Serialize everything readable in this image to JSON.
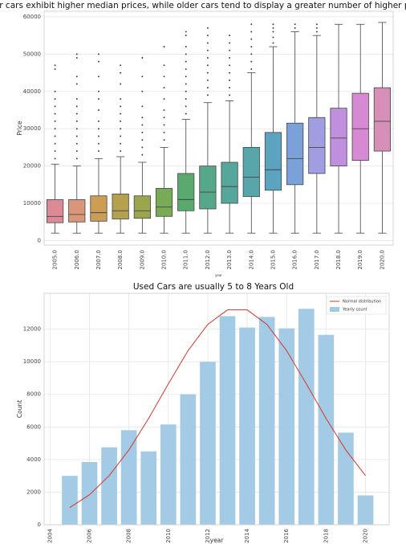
{
  "chart_data": [
    {
      "type": "box",
      "title": "Newer cars exhibit higher median prices, while older cars tend to display a greater number of higher price outlier",
      "x_label": "year",
      "y_label": "Price",
      "categories": [
        "2005.0",
        "2006.0",
        "2007.0",
        "2008.0",
        "2009.0",
        "2010.0",
        "2011.0",
        "2012.0",
        "2013.0",
        "2014.0",
        "2015.0",
        "2016.0",
        "2017.0",
        "2018.0",
        "2019.0",
        "2020.0"
      ],
      "colors": [
        "#dc8b96",
        "#d9967a",
        "#cc9e55",
        "#b4a04e",
        "#9aa54e",
        "#78ab56",
        "#5aaa70",
        "#55a98a",
        "#56a69c",
        "#58a5aa",
        "#5ca3bf",
        "#7ba2d8",
        "#a09ee0",
        "#c090de",
        "#d889d3",
        "#d690b8"
      ],
      "boxes": [
        {
          "whislo": 2000,
          "q1": 4800,
          "med": 6500,
          "q3": 11000,
          "whishi": 20500,
          "fliers": [
            22000,
            24000,
            26000,
            28000,
            30000,
            32000,
            34000,
            36000,
            38000,
            40000,
            46000,
            47000
          ]
        },
        {
          "whislo": 2000,
          "q1": 5000,
          "med": 7000,
          "q3": 11000,
          "whishi": 20000,
          "fliers": [
            22000,
            24000,
            26000,
            28000,
            30000,
            32000,
            34000,
            36000,
            38000,
            42000,
            44000,
            49000,
            50000
          ]
        },
        {
          "whislo": 2000,
          "q1": 5200,
          "med": 7500,
          "q3": 12000,
          "whishi": 22000,
          "fliers": [
            24000,
            26000,
            28000,
            30000,
            32000,
            35000,
            38000,
            40000,
            44000,
            48000,
            50000
          ]
        },
        {
          "whislo": 2000,
          "q1": 5800,
          "med": 8000,
          "q3": 12500,
          "whishi": 22500,
          "fliers": [
            24000,
            26000,
            28000,
            30000,
            32000,
            34000,
            36000,
            38000,
            42000,
            45000,
            47000
          ]
        },
        {
          "whislo": 2000,
          "q1": 6000,
          "med": 8000,
          "q3": 12000,
          "whishi": 21000,
          "fliers": [
            23000,
            25000,
            27000,
            29000,
            31000,
            33000,
            36000,
            40000,
            44000,
            49000
          ]
        },
        {
          "whislo": 2000,
          "q1": 6500,
          "med": 9000,
          "q3": 14000,
          "whishi": 25000,
          "fliers": [
            27000,
            29000,
            31000,
            33000,
            35000,
            38000,
            41000,
            44000,
            47000,
            52000
          ]
        },
        {
          "whislo": 2000,
          "q1": 8000,
          "med": 11000,
          "q3": 18000,
          "whishi": 32500,
          "fliers": [
            34000,
            36000,
            38000,
            40000,
            42000,
            44000,
            46000,
            48000,
            50000,
            52000,
            55000,
            56000
          ]
        },
        {
          "whislo": 2000,
          "q1": 8500,
          "med": 13000,
          "q3": 20000,
          "whishi": 37000,
          "fliers": [
            39000,
            41000,
            43000,
            45000,
            47000,
            49000,
            51000,
            53000,
            55000,
            57000
          ]
        },
        {
          "whislo": 2000,
          "q1": 10000,
          "med": 14500,
          "q3": 21000,
          "whishi": 37500,
          "fliers": [
            39000,
            41000,
            43000,
            45000,
            47000,
            49000,
            51000,
            53000,
            55000
          ]
        },
        {
          "whislo": 2000,
          "q1": 11800,
          "med": 17000,
          "q3": 25000,
          "whishi": 45000,
          "fliers": [
            46000,
            48000,
            50000,
            52000,
            54000,
            56000,
            58000
          ]
        },
        {
          "whislo": 2000,
          "q1": 13500,
          "med": 19000,
          "q3": 29000,
          "whishi": 52000,
          "fliers": [
            53000,
            54500,
            56000,
            57000,
            58000
          ]
        },
        {
          "whislo": 2000,
          "q1": 15000,
          "med": 22000,
          "q3": 31500,
          "whishi": 56000,
          "fliers": [
            57000,
            58000
          ]
        },
        {
          "whislo": 2000,
          "q1": 18000,
          "med": 25000,
          "q3": 33000,
          "whishi": 55000,
          "fliers": [
            56000,
            57000,
            58000
          ]
        },
        {
          "whislo": 2000,
          "q1": 20000,
          "med": 27500,
          "q3": 35500,
          "whishi": 58000,
          "fliers": []
        },
        {
          "whislo": 2000,
          "q1": 21500,
          "med": 30000,
          "q3": 39500,
          "whishi": 58000,
          "fliers": []
        },
        {
          "whislo": 2000,
          "q1": 24000,
          "med": 32000,
          "q3": 41000,
          "whishi": 58500,
          "fliers": []
        }
      ],
      "ylim": [
        -1200,
        61500
      ],
      "yticks": [
        0,
        10000,
        20000,
        30000,
        40000,
        50000,
        60000
      ],
      "grid": true
    },
    {
      "type": "combo",
      "title": "Used Cars are usually 5 to 8 Years Old",
      "x_label": "year",
      "y_label": "Count",
      "x": [
        2005,
        2006,
        2007,
        2008,
        2009,
        2010,
        2011,
        2012,
        2013,
        2014,
        2015,
        2016,
        2017,
        2018,
        2019,
        2020
      ],
      "series": [
        {
          "name": "Normal distribution",
          "type": "line",
          "color": "#d9352a",
          "values": [
            1050,
            1840,
            3010,
            4590,
            6520,
            8640,
            10680,
            12290,
            13180,
            13180,
            12290,
            10680,
            8640,
            6520,
            4590,
            3010
          ]
        },
        {
          "name": "Yearly count",
          "type": "bar",
          "color": "#a3cbe5",
          "values": [
            3000,
            3850,
            4750,
            5800,
            4500,
            6150,
            8000,
            10000,
            12800,
            12100,
            12750,
            12050,
            13250,
            11650,
            5650,
            1800
          ]
        }
      ],
      "xlim": [
        2003.7,
        2021.2
      ],
      "xticks": [
        2004,
        2006,
        2008,
        2010,
        2012,
        2014,
        2016,
        2018,
        2020
      ],
      "ylim": [
        0,
        14200
      ],
      "yticks": [
        0,
        2000,
        4000,
        6000,
        8000,
        10000,
        12000
      ],
      "grid": true,
      "legend": "upper right"
    }
  ]
}
